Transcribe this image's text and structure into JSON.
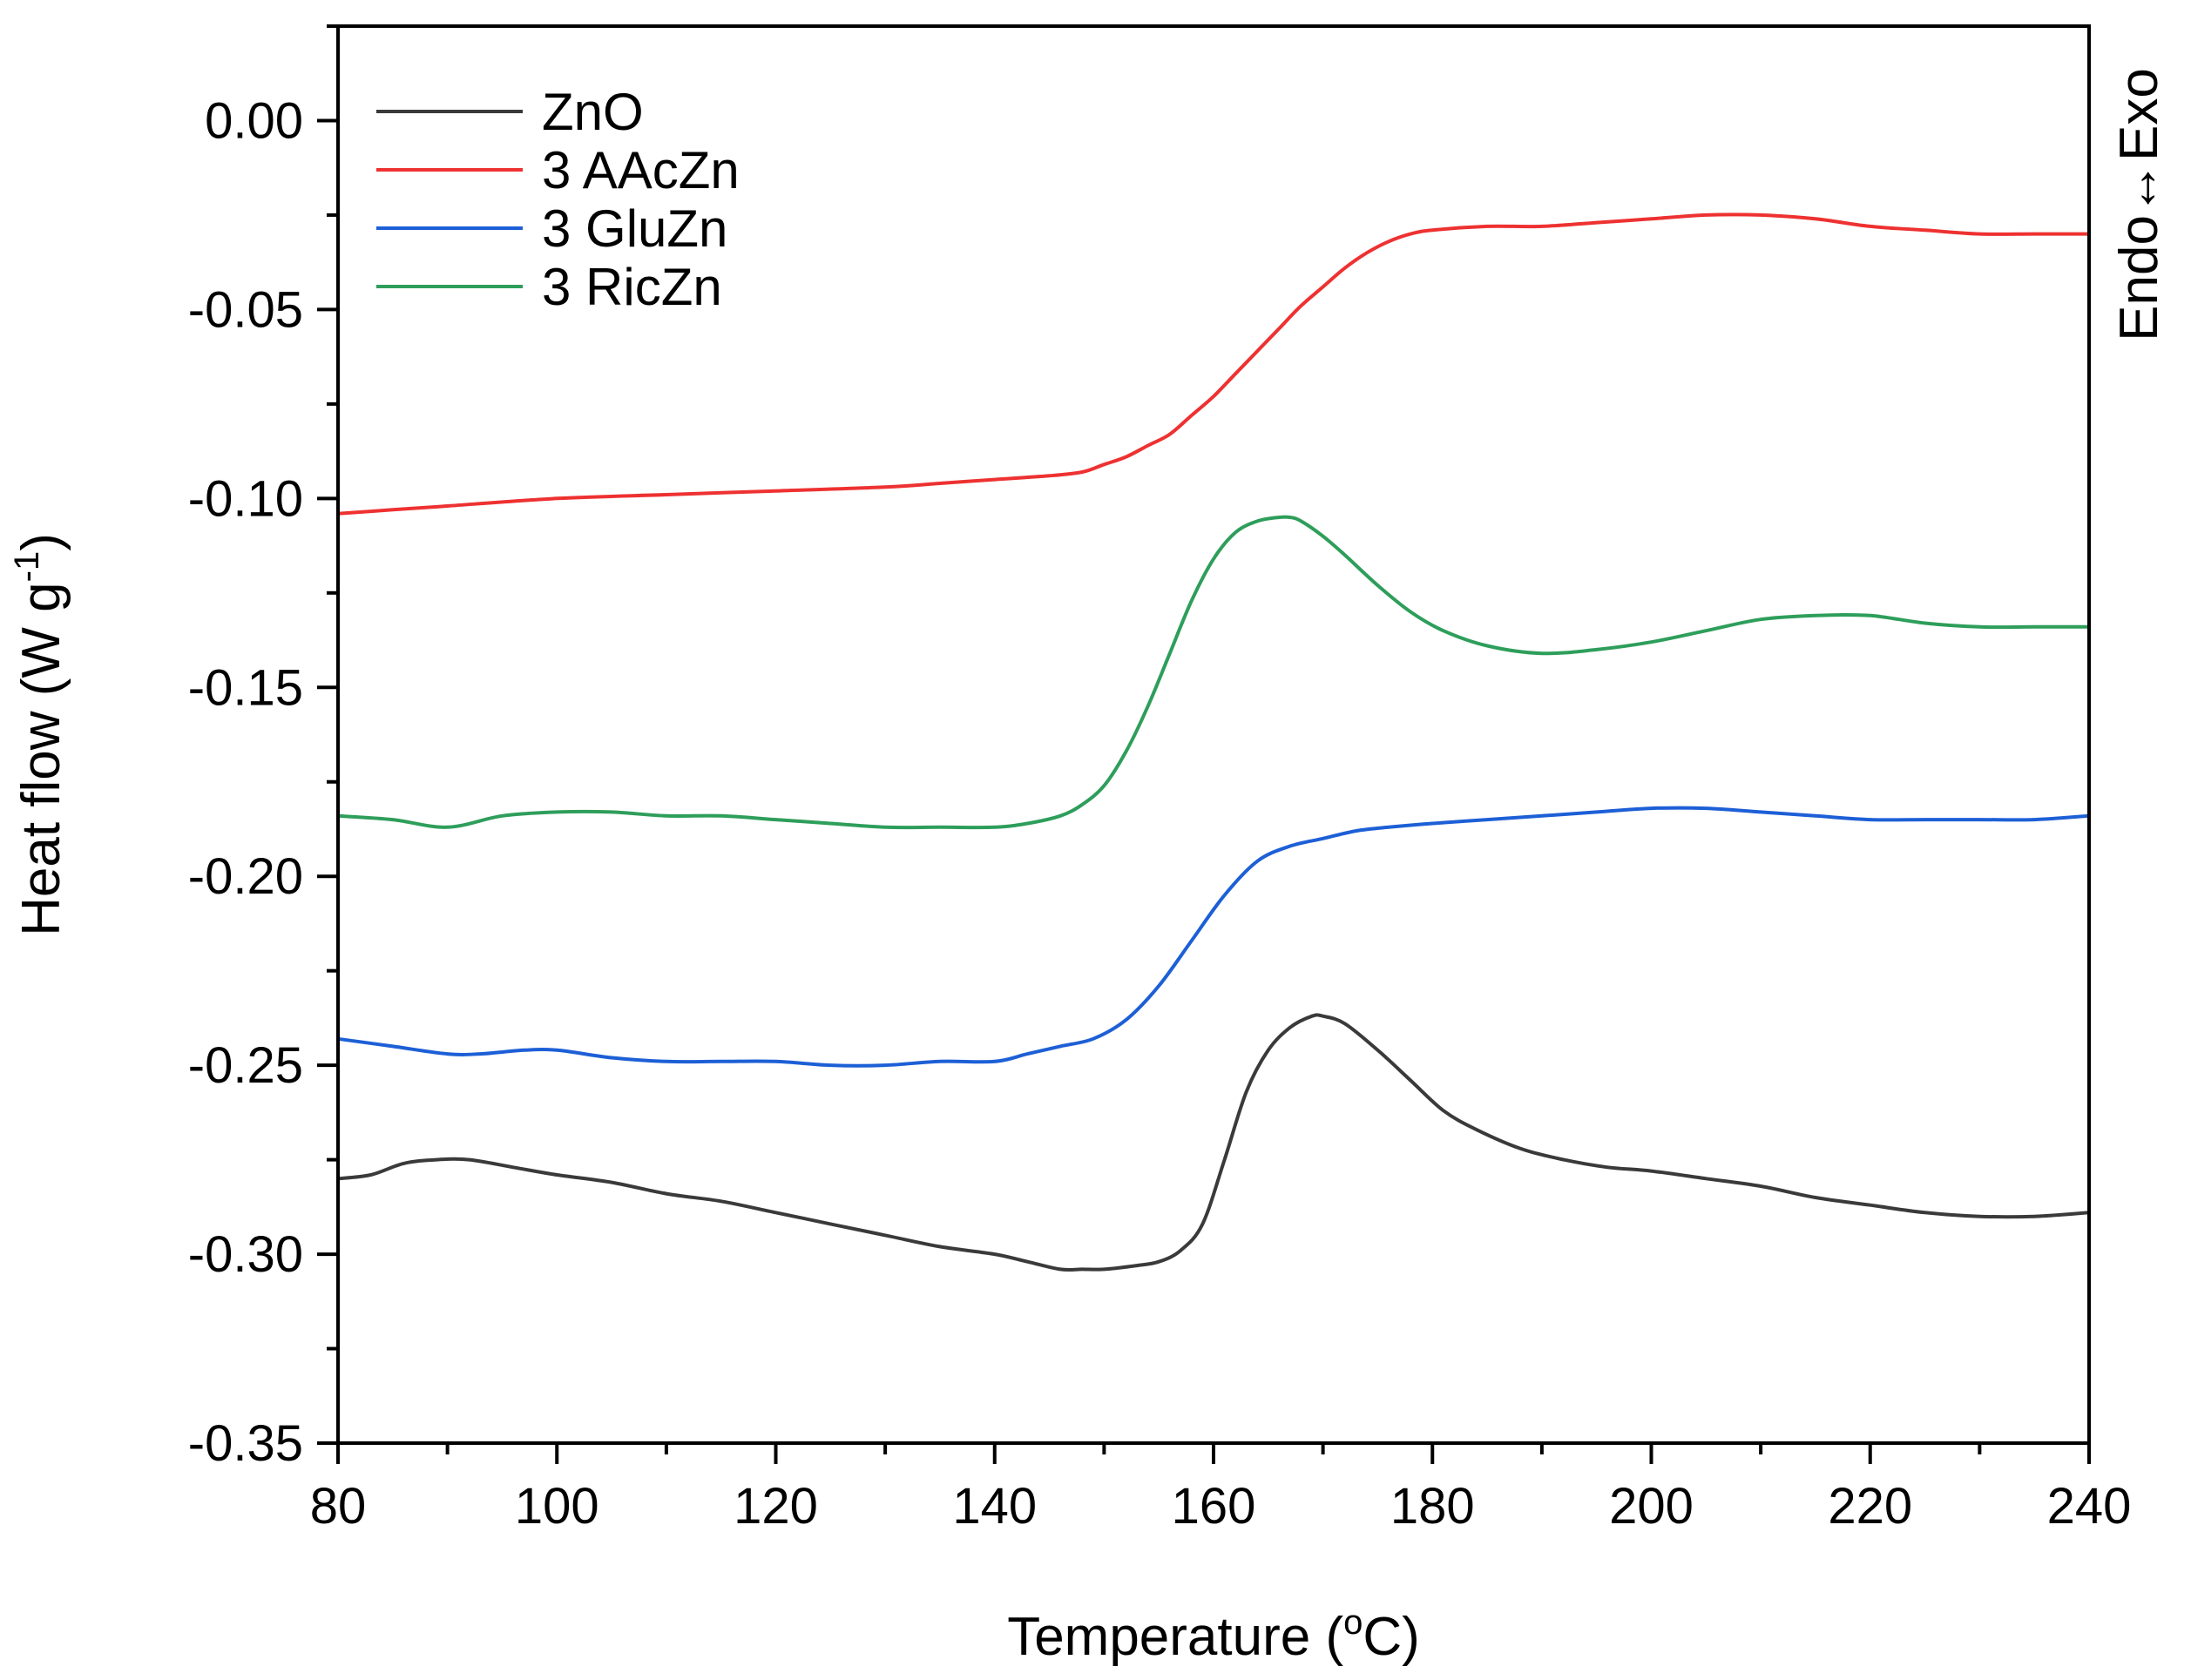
{
  "chart_data": {
    "type": "line",
    "xlabel": "Temperature (°C)",
    "xlabel_parts": [
      "Temperature (",
      "o",
      "C)"
    ],
    "ylabel": "Heat flow (W g-1)",
    "ylabel_parts": [
      "Heat flow (W g",
      "-1",
      ")"
    ],
    "right_label": "Endo↔Exo",
    "xlim": [
      80,
      240
    ],
    "ylim": [
      -0.35,
      0.025
    ],
    "x_ticks": [
      80,
      100,
      120,
      140,
      160,
      180,
      200,
      220,
      240
    ],
    "y_ticks": [
      -0.35,
      -0.3,
      -0.25,
      -0.2,
      -0.15,
      -0.1,
      -0.05,
      0.0
    ],
    "x_tick_labels": [
      "80",
      "100",
      "120",
      "140",
      "160",
      "180",
      "200",
      "220",
      "240"
    ],
    "y_tick_labels": [
      "-0.35",
      "-0.30",
      "-0.25",
      "-0.20",
      "-0.15",
      "-0.10",
      "-0.05",
      "0.00"
    ],
    "grid": false,
    "legend_position": "top-left",
    "series": [
      {
        "name": "ZnO",
        "color": "#3a3a3a",
        "x": [
          80,
          83,
          86,
          89,
          92,
          96,
          100,
          105,
          110,
          115,
          120,
          125,
          130,
          135,
          140,
          143,
          146,
          148,
          150,
          153,
          155,
          157,
          159,
          161,
          163,
          165,
          167,
          169,
          170,
          172,
          175,
          178,
          181,
          184,
          188,
          192,
          196,
          200,
          205,
          210,
          215,
          220,
          225,
          230,
          235,
          240
        ],
        "y": [
          -0.28,
          -0.279,
          -0.276,
          -0.275,
          -0.275,
          -0.277,
          -0.279,
          -0.281,
          -0.284,
          -0.286,
          -0.289,
          -0.292,
          -0.295,
          -0.298,
          -0.3,
          -0.302,
          -0.304,
          -0.304,
          -0.304,
          -0.303,
          -0.302,
          -0.299,
          -0.292,
          -0.275,
          -0.257,
          -0.246,
          -0.24,
          -0.237,
          -0.237,
          -0.239,
          -0.246,
          -0.254,
          -0.262,
          -0.267,
          -0.272,
          -0.275,
          -0.277,
          -0.278,
          -0.28,
          -0.282,
          -0.285,
          -0.287,
          -0.289,
          -0.29,
          -0.29,
          -0.289
        ]
      },
      {
        "name": "3 AAcZn",
        "color": "#ee3131",
        "x": [
          80,
          85,
          90,
          100,
          110,
          120,
          130,
          135,
          140,
          145,
          148,
          150,
          152,
          154,
          156,
          158,
          160,
          162,
          164,
          166,
          168,
          170,
          172,
          174,
          176,
          178,
          180,
          185,
          190,
          195,
          200,
          205,
          210,
          215,
          220,
          225,
          230,
          235,
          240
        ],
        "y": [
          -0.104,
          -0.103,
          -0.102,
          -0.1,
          -0.099,
          -0.098,
          -0.097,
          -0.096,
          -0.095,
          -0.094,
          -0.093,
          -0.091,
          -0.089,
          -0.086,
          -0.083,
          -0.078,
          -0.073,
          -0.067,
          -0.061,
          -0.055,
          -0.049,
          -0.044,
          -0.039,
          -0.035,
          -0.032,
          -0.03,
          -0.029,
          -0.028,
          -0.028,
          -0.027,
          -0.026,
          -0.025,
          -0.025,
          -0.026,
          -0.028,
          -0.029,
          -0.03,
          -0.03,
          -0.03
        ]
      },
      {
        "name": "3 GluZn",
        "color": "#1d5fd6",
        "x": [
          80,
          85,
          90,
          93,
          97,
          100,
          105,
          110,
          115,
          120,
          125,
          130,
          135,
          140,
          143,
          146,
          149,
          152,
          155,
          158,
          161,
          164,
          167,
          170,
          173,
          176,
          180,
          185,
          190,
          195,
          200,
          205,
          210,
          215,
          220,
          225,
          230,
          235,
          240
        ],
        "y": [
          -0.243,
          -0.245,
          -0.247,
          -0.247,
          -0.246,
          -0.246,
          -0.248,
          -0.249,
          -0.249,
          -0.249,
          -0.25,
          -0.25,
          -0.249,
          -0.249,
          -0.247,
          -0.245,
          -0.243,
          -0.238,
          -0.229,
          -0.217,
          -0.205,
          -0.196,
          -0.192,
          -0.19,
          -0.188,
          -0.187,
          -0.186,
          -0.185,
          -0.184,
          -0.183,
          -0.182,
          -0.182,
          -0.183,
          -0.184,
          -0.185,
          -0.185,
          -0.185,
          -0.185,
          -0.184
        ]
      },
      {
        "name": "3 RicZn",
        "color": "#2e9e5b",
        "x": [
          80,
          85,
          90,
          95,
          100,
          105,
          110,
          115,
          120,
          125,
          130,
          135,
          140,
          143,
          146,
          148,
          150,
          152,
          154,
          156,
          158,
          160,
          162,
          164,
          166,
          167,
          168,
          170,
          172,
          175,
          178,
          181,
          185,
          190,
          195,
          200,
          205,
          210,
          215,
          220,
          225,
          230,
          235,
          240
        ],
        "y": [
          -0.184,
          -0.185,
          -0.187,
          -0.184,
          -0.183,
          -0.183,
          -0.184,
          -0.184,
          -0.185,
          -0.186,
          -0.187,
          -0.187,
          -0.187,
          -0.186,
          -0.184,
          -0.181,
          -0.176,
          -0.167,
          -0.155,
          -0.141,
          -0.127,
          -0.116,
          -0.109,
          -0.106,
          -0.105,
          -0.105,
          -0.106,
          -0.11,
          -0.115,
          -0.123,
          -0.13,
          -0.135,
          -0.139,
          -0.141,
          -0.14,
          -0.138,
          -0.135,
          -0.132,
          -0.131,
          -0.131,
          -0.133,
          -0.134,
          -0.134,
          -0.134
        ]
      }
    ]
  }
}
